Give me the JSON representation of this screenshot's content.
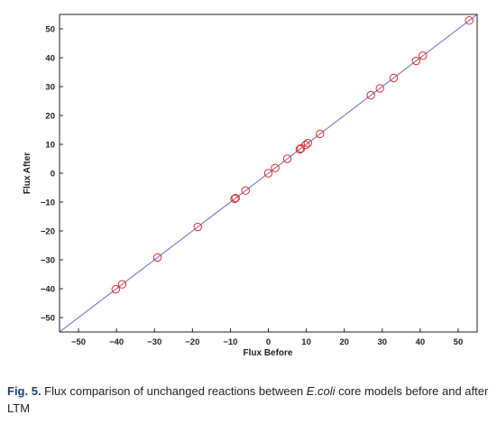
{
  "chart_data": {
    "type": "scatter",
    "xlabel": "Flux Before",
    "ylabel": "Flux After",
    "xlim": [
      -55,
      55
    ],
    "ylim": [
      -55,
      55
    ],
    "xticks": [
      -50,
      -40,
      -30,
      -20,
      -10,
      0,
      10,
      20,
      30,
      40,
      50
    ],
    "yticks": [
      -50,
      -40,
      -30,
      -20,
      -10,
      0,
      10,
      20,
      30,
      40,
      50
    ],
    "tick_labels_x": [
      "-50",
      "-40",
      "-30",
      "-20",
      "-10",
      "0",
      "10",
      "20",
      "30",
      "40",
      "50"
    ],
    "tick_labels_y": [
      "-50",
      "-40",
      "-30",
      "-20",
      "-10",
      "0",
      "10",
      "20",
      "30",
      "40",
      "50"
    ],
    "grid": false,
    "reference_line": {
      "slope": 1,
      "intercept": 0,
      "color": "#8080cc"
    },
    "marker_color": "#e8281e",
    "series": [
      {
        "x": [
          -40.2,
          -38.5,
          -29.2,
          -18.6,
          -8.9,
          -8.6,
          -6.0,
          0.0,
          1.8,
          5.0,
          8.3,
          8.6,
          9.8,
          10.4,
          13.6,
          27.0,
          29.4,
          33.0,
          38.9,
          40.7,
          52.9
        ],
        "y": [
          -40.2,
          -38.5,
          -29.2,
          -18.6,
          -8.9,
          -8.6,
          -6.0,
          0.0,
          1.8,
          5.0,
          8.3,
          8.6,
          9.8,
          10.4,
          13.6,
          27.0,
          29.4,
          33.0,
          38.9,
          40.7,
          52.9
        ]
      }
    ]
  },
  "caption": {
    "fig_ref": "Fig. 5.",
    "text_before": " Flux comparison of unchanged reactions between ",
    "italic": "E.coli",
    "text_after": " core models before and after LTM"
  }
}
